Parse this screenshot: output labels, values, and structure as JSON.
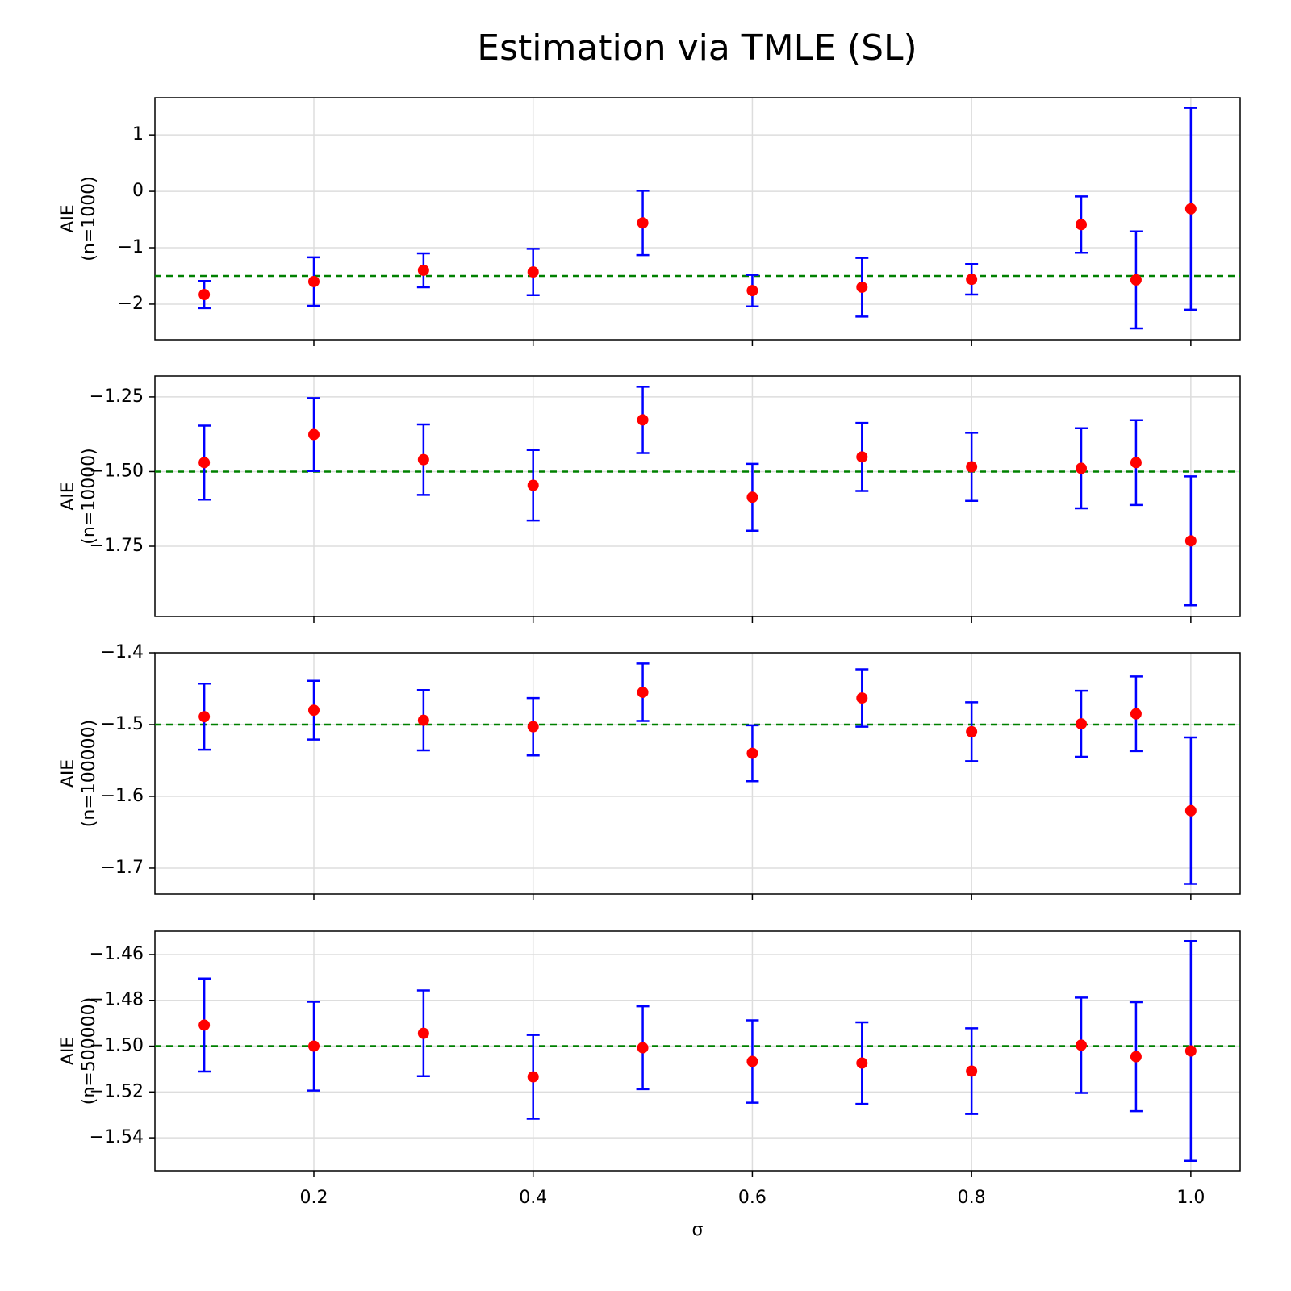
{
  "title": "Estimation via TMLE (SL)",
  "chart_data": [
    {
      "type": "errorbar",
      "x": [
        0.1,
        0.2,
        0.3,
        0.4,
        0.5,
        0.6,
        0.7,
        0.8,
        0.9,
        0.95,
        1.0
      ],
      "values": [
        -1.83,
        -1.6,
        -1.4,
        -1.43,
        -0.56,
        -1.76,
        -1.7,
        -1.56,
        -0.59,
        -1.57,
        -0.31
      ],
      "errors": [
        0.24,
        0.43,
        0.3,
        0.41,
        0.57,
        0.28,
        0.52,
        0.27,
        0.5,
        0.86,
        1.79
      ],
      "color": "#ff0000",
      "error_color": "#0000ff",
      "hline": -1.5,
      "hline_color": "#008000",
      "ylabel": [
        "AIE",
        "(n=1000)"
      ],
      "xlim": [
        0.055,
        1.045
      ],
      "ylim": [
        -2.63,
        1.66
      ],
      "yticks": [
        1,
        0,
        {
          "value": -1,
          "label": "−1"
        },
        {
          "value": -2,
          "label": "−2"
        }
      ],
      "xticks": [
        0.2,
        0.4,
        0.6,
        0.8,
        1
      ],
      "xtick_labels": false,
      "grid": true
    },
    {
      "type": "errorbar",
      "x": [
        0.1,
        0.2,
        0.3,
        0.4,
        0.5,
        0.6,
        0.7,
        0.8,
        0.9,
        0.95,
        1.0
      ],
      "values": [
        -1.47,
        -1.376,
        -1.46,
        -1.546,
        -1.327,
        -1.586,
        -1.451,
        -1.484,
        -1.489,
        -1.47,
        -1.732
      ],
      "errors": [
        0.124,
        0.122,
        0.118,
        0.118,
        0.111,
        0.112,
        0.114,
        0.114,
        0.134,
        0.142,
        0.216
      ],
      "color": "#ff0000",
      "error_color": "#0000ff",
      "hline": -1.5,
      "hline_color": "#008000",
      "ylabel": [
        "AIE",
        "(n=10000)"
      ],
      "xlim": [
        0.055,
        1.045
      ],
      "ylim": [
        -1.985,
        -1.18
      ],
      "yticks": [
        {
          "value": -1.25,
          "label": "−1.25"
        },
        {
          "value": -1.5,
          "label": "−1.50"
        },
        {
          "value": -1.75,
          "label": "−1.75"
        }
      ],
      "xticks": [
        0.2,
        0.4,
        0.6,
        0.8,
        1
      ],
      "xtick_labels": false,
      "grid": true
    },
    {
      "type": "errorbar",
      "x": [
        0.1,
        0.2,
        0.3,
        0.4,
        0.5,
        0.6,
        0.7,
        0.8,
        0.9,
        0.95,
        1.0
      ],
      "values": [
        -1.489,
        -1.48,
        -1.494,
        -1.503,
        -1.455,
        -1.54,
        -1.463,
        -1.51,
        -1.499,
        -1.485,
        -1.62
      ],
      "errors": [
        0.046,
        0.041,
        0.042,
        0.04,
        0.04,
        0.039,
        0.04,
        0.041,
        0.046,
        0.052,
        0.102
      ],
      "color": "#ff0000",
      "error_color": "#0000ff",
      "hline": -1.5,
      "hline_color": "#008000",
      "ylabel": [
        "AIE",
        "(n=100000)"
      ],
      "xlim": [
        0.055,
        1.045
      ],
      "ylim": [
        -1.736,
        -1.4
      ],
      "yticks": [
        {
          "value": -1.4,
          "label": "−1.4"
        },
        {
          "value": -1.5,
          "label": "−1.5"
        },
        {
          "value": -1.6,
          "label": "−1.6"
        },
        {
          "value": -1.7,
          "label": "−1.7"
        }
      ],
      "xticks": [
        0.2,
        0.4,
        0.6,
        0.8,
        1
      ],
      "xtick_labels": false,
      "grid": true
    },
    {
      "type": "errorbar",
      "x": [
        0.1,
        0.2,
        0.3,
        0.4,
        0.5,
        0.6,
        0.7,
        0.8,
        0.9,
        0.95,
        1.0
      ],
      "values": [
        -1.4908,
        -1.5,
        -1.4944,
        -1.5134,
        -1.5007,
        -1.5067,
        -1.5074,
        -1.5109,
        -1.4996,
        -1.5046,
        -1.5021
      ],
      "errors": [
        0.0203,
        0.0194,
        0.0187,
        0.0183,
        0.0181,
        0.018,
        0.0178,
        0.0187,
        0.0208,
        0.0238,
        0.048
      ],
      "color": "#ff0000",
      "error_color": "#0000ff",
      "hline": -1.5,
      "hline_color": "#008000",
      "ylabel": [
        "AIE",
        "(n=500000)"
      ],
      "xlabel": "σ",
      "xlim": [
        0.055,
        1.045
      ],
      "ylim": [
        -1.5544,
        -1.4498
      ],
      "yticks": [
        {
          "value": -1.46,
          "label": "−1.46"
        },
        {
          "value": -1.48,
          "label": "−1.48"
        },
        {
          "value": -1.5,
          "label": "−1.50"
        },
        {
          "value": -1.52,
          "label": "−1.52"
        },
        {
          "value": -1.54,
          "label": "−1.54"
        }
      ],
      "xticks": [
        0.2,
        0.4,
        0.6,
        0.8,
        {
          "value": 1,
          "label": "1.0"
        }
      ],
      "xtick_labels": true,
      "grid": true
    }
  ]
}
